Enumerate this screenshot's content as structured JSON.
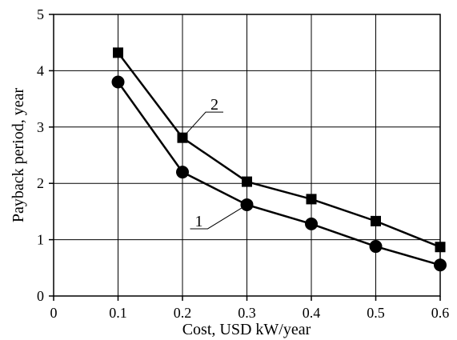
{
  "chart_data": {
    "type": "line",
    "title": "",
    "xlabel": "Cost, USD kW/year",
    "ylabel": "Payback period, year",
    "xlim": [
      0,
      0.6
    ],
    "ylim": [
      0,
      5
    ],
    "x_ticks": [
      0,
      0.1,
      0.2,
      0.3,
      0.4,
      0.5,
      0.6
    ],
    "x_tick_labels": [
      "0",
      "0.1",
      "0.2",
      "0.3",
      "0.4",
      "0.5",
      "0.6"
    ],
    "y_ticks": [
      0,
      1,
      2,
      3,
      4,
      5
    ],
    "y_tick_labels": [
      "0",
      "1",
      "2",
      "3",
      "4",
      "5"
    ],
    "grid": true,
    "legend": "none",
    "x": [
      0.1,
      0.2,
      0.3,
      0.4,
      0.5,
      0.6
    ],
    "series": [
      {
        "label": "1",
        "marker": "circle",
        "color": "#000000",
        "values": [
          3.8,
          2.2,
          1.62,
          1.28,
          0.88,
          0.55
        ]
      },
      {
        "label": "2",
        "marker": "square",
        "color": "#000000",
        "values": [
          4.32,
          2.81,
          2.03,
          1.72,
          1.33,
          0.87
        ]
      }
    ]
  }
}
